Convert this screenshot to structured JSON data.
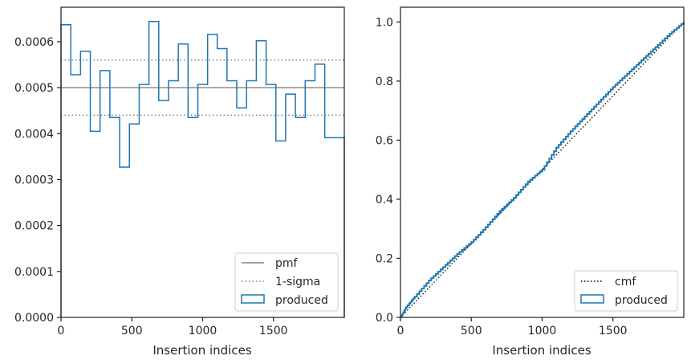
{
  "chart_data": [
    {
      "type": "line",
      "xlabel": "Insertion indices",
      "ylabel": "",
      "xlim": [
        0,
        2000
      ],
      "ylim": [
        0,
        0.000675
      ],
      "xticks": [
        0,
        500,
        1000,
        1500
      ],
      "xtick_labels": [
        "0",
        "500",
        "1000",
        "1500"
      ],
      "yticks": [
        0,
        0.0001,
        0.0002,
        0.0003,
        0.0004,
        0.0005,
        0.0006
      ],
      "ytick_labels": [
        "0.0000",
        "0.0001",
        "0.0002",
        "0.0003",
        "0.0004",
        "0.0005",
        "0.0006"
      ],
      "grid": false,
      "legend": "bottom-right",
      "pmf": 0.0005,
      "sigma_band": [
        0.00044,
        0.00056
      ],
      "series": [
        {
          "name": "produced",
          "style": "step",
          "color": "#1f77b4",
          "bin_edges": [
            0,
            69,
            138,
            207,
            276,
            345,
            414,
            483,
            552,
            621,
            690,
            759,
            828,
            897,
            966,
            1035,
            1103,
            1172,
            1241,
            1310,
            1379,
            1448,
            1517,
            1586,
            1655,
            1724,
            1793,
            1862,
            2000
          ],
          "values": [
            0.000637,
            0.000528,
            0.000579,
            0.000405,
            0.000537,
            0.000435,
            0.000327,
            0.000421,
            0.000507,
            0.000644,
            0.000472,
            0.000515,
            0.000595,
            0.000435,
            0.000507,
            0.000616,
            0.000585,
            0.000515,
            0.000456,
            0.000515,
            0.000602,
            0.000507,
            0.000384,
            0.000486,
            0.000435,
            0.000515,
            0.000551,
            0.000391
          ]
        },
        {
          "name": "pmf",
          "style": "solid",
          "color": "#808080",
          "x": [
            0,
            2000
          ],
          "y": [
            0.0005,
            0.0005
          ]
        },
        {
          "name": "1-sigma",
          "style": "dotted",
          "color": "#808080",
          "x": [
            0,
            2000
          ],
          "y": [
            0.00044,
            0.00044
          ]
        }
      ],
      "legend_entries": [
        "pmf",
        "1-sigma",
        "produced"
      ]
    },
    {
      "type": "line",
      "xlabel": "Insertion indices",
      "ylabel": "",
      "xlim": [
        0,
        2000
      ],
      "ylim": [
        0,
        1.05
      ],
      "xticks": [
        0,
        500,
        1000,
        1500
      ],
      "xtick_labels": [
        "0",
        "500",
        "1000",
        "1500"
      ],
      "yticks": [
        0,
        0.2,
        0.4,
        0.6,
        0.8,
        1.0
      ],
      "ytick_labels": [
        "0.0",
        "0.2",
        "0.4",
        "0.6",
        "0.8",
        "1.0"
      ],
      "grid": false,
      "legend": "bottom-right",
      "series": [
        {
          "name": "cmf",
          "style": "dotted",
          "color": "#000000",
          "x": [
            0,
            2000
          ],
          "y": [
            0,
            1.0
          ]
        },
        {
          "name": "produced",
          "style": "step",
          "color": "#1f77b4",
          "x": [
            0,
            40,
            100,
            200,
            300,
            400,
            500,
            600,
            700,
            800,
            900,
            1000,
            1100,
            1200,
            1300,
            1400,
            1500,
            1600,
            1700,
            1800,
            1900,
            2000
          ],
          "y": [
            0,
            0.035,
            0.07,
            0.125,
            0.17,
            0.215,
            0.255,
            0.305,
            0.36,
            0.405,
            0.46,
            0.5,
            0.575,
            0.63,
            0.68,
            0.73,
            0.78,
            0.825,
            0.87,
            0.915,
            0.96,
            1.0
          ]
        }
      ],
      "legend_entries": [
        "cmf",
        "produced"
      ]
    }
  ]
}
